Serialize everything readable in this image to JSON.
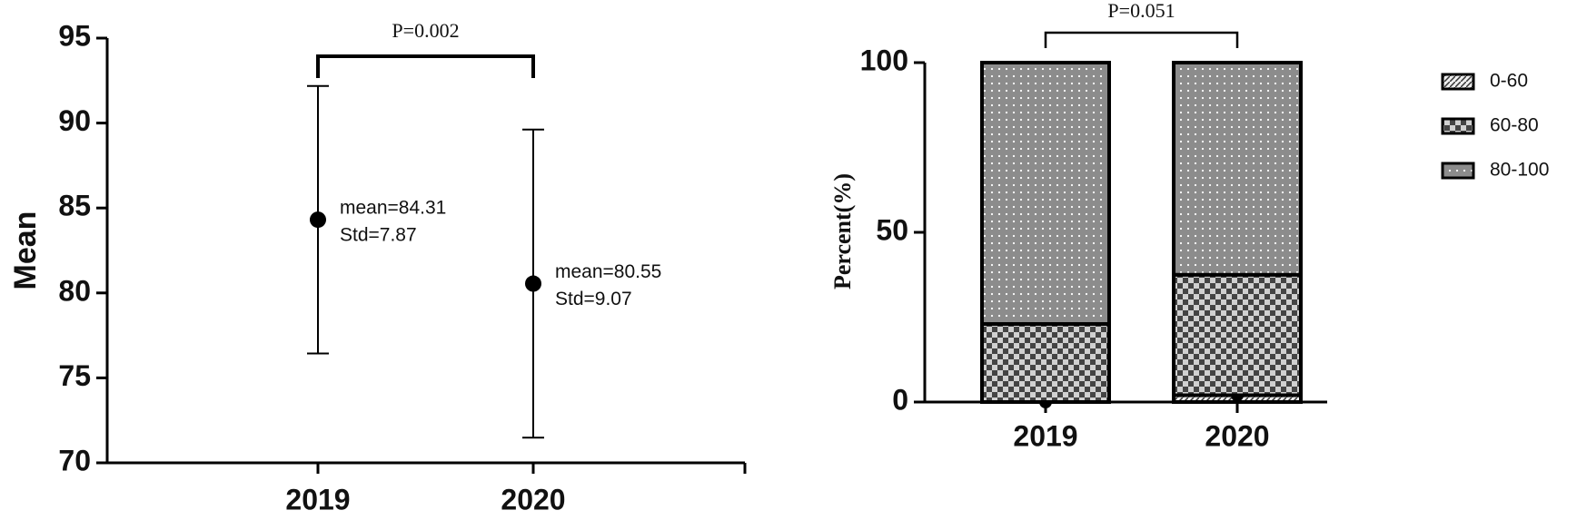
{
  "chart_data": [
    {
      "type": "errorbar",
      "y_label": "Mean",
      "categories": [
        "2019",
        "2020"
      ],
      "values": [
        84.31,
        80.55
      ],
      "errors": [
        7.87,
        9.07
      ],
      "value_labels": [
        "mean=84.31",
        "mean=80.55"
      ],
      "error_labels": [
        "Std=7.87",
        "Std=9.07"
      ],
      "color": "#000000",
      "ylim": [
        70,
        95
      ],
      "yticks": [
        70,
        75,
        80,
        85,
        90,
        95
      ],
      "annotation": "P=0.002"
    },
    {
      "type": "stacked_bar",
      "y_label": "Percent(%)",
      "categories": [
        "2019",
        "2020"
      ],
      "series": [
        {
          "name": "0-60",
          "pattern": "hatch",
          "values": [
            0,
            2
          ]
        },
        {
          "name": "60-80",
          "pattern": "checker",
          "values": [
            23,
            35.5
          ]
        },
        {
          "name": "80-100",
          "pattern": "dots",
          "values": [
            77,
            62.5
          ]
        }
      ],
      "ylim": [
        0,
        100
      ],
      "yticks": [
        0,
        50,
        100
      ],
      "annotation": "P=0.051"
    }
  ]
}
